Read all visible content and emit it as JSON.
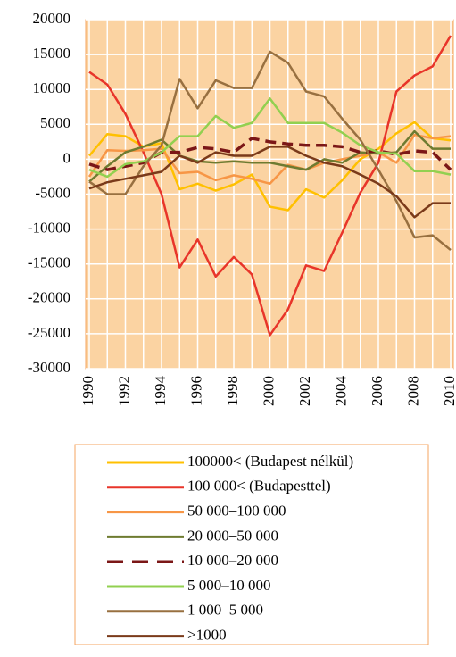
{
  "chart_data": {
    "type": "line",
    "x": [
      1990,
      1991,
      1992,
      1993,
      1994,
      1995,
      1996,
      1997,
      1998,
      1999,
      2000,
      2001,
      2002,
      2003,
      2004,
      2005,
      2006,
      2007,
      2008,
      2009,
      2010
    ],
    "xlim": [
      1990,
      2010
    ],
    "xticks": [
      1990,
      1992,
      1994,
      1996,
      1998,
      2000,
      2002,
      2004,
      2006,
      2008,
      2010
    ],
    "ylim": [
      -30000,
      20000
    ],
    "yticks": [
      -30000,
      -25000,
      -20000,
      -15000,
      -10000,
      -5000,
      0,
      5000,
      10000,
      15000,
      20000
    ],
    "grid": true,
    "series": [
      {
        "name": "100000< (Budapest nélkül)",
        "color": "#ffc000",
        "values": [
          500,
          3600,
          3300,
          1800,
          2300,
          -4300,
          -3500,
          -4500,
          -3600,
          -2200,
          -6800,
          -7300,
          -4300,
          -5500,
          -3000,
          0,
          1500,
          3700,
          5300,
          3000,
          2700
        ]
      },
      {
        "name": "100 000< (Budapesttel)",
        "color": "#e8352a",
        "values": [
          12500,
          10700,
          6500,
          1000,
          -5000,
          -15500,
          -11500,
          -16800,
          -14000,
          -16500,
          -25200,
          -21500,
          -15200,
          -16000,
          -10500,
          -4800,
          -500,
          9700,
          12000,
          13300,
          17700
        ]
      },
      {
        "name": "50 000–100 000",
        "color": "#f79646",
        "values": [
          -2500,
          1300,
          1200,
          1300,
          1500,
          -2000,
          -1800,
          -3000,
          -2300,
          -2800,
          -3500,
          -800,
          -1500,
          -500,
          0,
          500,
          1000,
          -500,
          3500,
          3000,
          3300
        ]
      },
      {
        "name": "20 000–50 000",
        "color": "#6e7b30",
        "values": [
          -3200,
          -1000,
          1000,
          1800,
          2800,
          500,
          -300,
          -500,
          -300,
          -500,
          -500,
          -1000,
          -1500,
          0,
          -500,
          1000,
          800,
          1000,
          4000,
          1500,
          1500
        ]
      },
      {
        "name": "10 000–20 000",
        "color": "#7b1717",
        "dashed": true,
        "values": [
          -700,
          -1500,
          -1000,
          -500,
          1000,
          1000,
          1700,
          1500,
          1000,
          3000,
          2500,
          2200,
          2000,
          2000,
          1800,
          1000,
          1200,
          700,
          1200,
          1000,
          -1500
        ]
      },
      {
        "name": "5 000–10 000",
        "color": "#92d050",
        "values": [
          -1500,
          -2500,
          -700,
          -300,
          1000,
          3300,
          3300,
          6200,
          4500,
          5200,
          8700,
          5200,
          5200,
          5200,
          3800,
          2000,
          1000,
          800,
          -1700,
          -1700,
          -2200
        ]
      },
      {
        "name": "1 000–5 000",
        "color": "#987040",
        "values": [
          -3200,
          -5000,
          -5000,
          -1000,
          2000,
          11500,
          7300,
          11300,
          10200,
          10200,
          15400,
          13800,
          9700,
          9000,
          5800,
          2800,
          -1500,
          -6000,
          -11200,
          -10900,
          -13000
        ]
      },
      {
        "name": ">1000",
        "color": "#7a3a1a",
        "values": [
          -4200,
          -3300,
          -2800,
          -2300,
          -1800,
          500,
          -500,
          1000,
          500,
          500,
          1800,
          1800,
          500,
          -500,
          -1000,
          -2200,
          -3500,
          -5300,
          -8300,
          -6300,
          -6300
        ]
      }
    ]
  }
}
